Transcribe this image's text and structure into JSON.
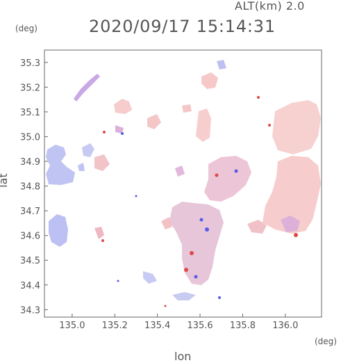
{
  "header": {
    "altitude_label": "ALT(km) 2.0",
    "timestamp": "2020/09/17 15:14:31"
  },
  "axes": {
    "y_unit": "(deg)",
    "x_unit": "(deg)",
    "x_label": "lon",
    "y_label": "lat",
    "x_ticks": [
      "135.0",
      "135.2",
      "135.4",
      "135.6",
      "135.8",
      "136.0"
    ],
    "y_ticks": [
      "35.3",
      "35.2",
      "35.1",
      "35.0",
      "34.9",
      "34.8",
      "34.7",
      "34.6",
      "34.5",
      "34.4",
      "34.3"
    ],
    "x_range": [
      134.87,
      136.17
    ],
    "y_range": [
      34.27,
      35.35
    ]
  },
  "colors": {
    "approaching": "#b8bcf2",
    "approaching_strong": "#5a5ae6",
    "receding": "#f6c8c8",
    "receding_strong": "#e04848",
    "frame": "#666666"
  }
}
